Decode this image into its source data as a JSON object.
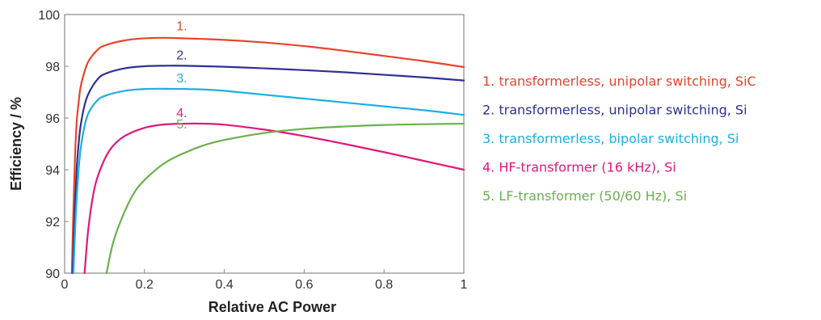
{
  "chart_data": {
    "type": "line",
    "xlabel": "Relative AC Power",
    "ylabel": "Efficiency / %",
    "xlim": [
      0,
      1
    ],
    "ylim": [
      90,
      100
    ],
    "xticks": [
      "0",
      "0.2",
      "0.4",
      "0.6",
      "0.8",
      "1"
    ],
    "yticks": [
      "90",
      "92",
      "94",
      "96",
      "98",
      "100"
    ],
    "grid": false,
    "legend_position": "right",
    "series": [
      {
        "name": "1. transformerless, unipolar switching, SiC",
        "marker": "1.",
        "color": "#e8442a",
        "x": [
          0.018,
          0.022,
          0.026,
          0.03,
          0.035,
          0.04,
          0.05,
          0.06,
          0.08,
          0.1,
          0.15,
          0.2,
          0.25,
          0.3,
          0.4,
          0.5,
          0.6,
          0.7,
          0.8,
          0.9,
          1.0
        ],
        "y": [
          90,
          92.5,
          94.5,
          95.8,
          96.6,
          97.2,
          97.8,
          98.2,
          98.6,
          98.8,
          99.0,
          99.08,
          99.1,
          99.08,
          99.02,
          98.92,
          98.78,
          98.6,
          98.4,
          98.2,
          97.97
        ]
      },
      {
        "name": "2. transformerless, unipolar switching, Si",
        "marker": "2.",
        "color": "#2e3192",
        "x": [
          0.02,
          0.025,
          0.03,
          0.035,
          0.04,
          0.05,
          0.06,
          0.08,
          0.1,
          0.15,
          0.2,
          0.25,
          0.3,
          0.4,
          0.5,
          0.6,
          0.7,
          0.8,
          0.9,
          1.0
        ],
        "y": [
          90,
          92.3,
          94.0,
          95.0,
          95.7,
          96.5,
          96.95,
          97.45,
          97.7,
          97.92,
          98.0,
          98.02,
          98.02,
          97.98,
          97.92,
          97.85,
          97.77,
          97.67,
          97.57,
          97.45
        ]
      },
      {
        "name": "3. transformerless, bipolar switching, Si",
        "marker": "3.",
        "color": "#1ab0e0",
        "x": [
          0.022,
          0.028,
          0.034,
          0.04,
          0.05,
          0.06,
          0.08,
          0.1,
          0.15,
          0.2,
          0.25,
          0.3,
          0.35,
          0.4,
          0.5,
          0.6,
          0.7,
          0.8,
          0.9,
          1.0
        ],
        "y": [
          90,
          92.3,
          93.8,
          94.8,
          95.7,
          96.2,
          96.65,
          96.85,
          97.05,
          97.12,
          97.13,
          97.12,
          97.1,
          97.05,
          96.9,
          96.75,
          96.6,
          96.45,
          96.3,
          96.12
        ]
      },
      {
        "name": "4. HF-transformer (16 kHz), Si",
        "marker": "4.",
        "color": "#e0187a",
        "x": [
          0.05,
          0.055,
          0.06,
          0.07,
          0.08,
          0.1,
          0.12,
          0.15,
          0.2,
          0.25,
          0.3,
          0.35,
          0.4,
          0.5,
          0.6,
          0.7,
          0.8,
          0.9,
          1.0
        ],
        "y": [
          90,
          91.0,
          91.8,
          92.9,
          93.6,
          94.4,
          94.9,
          95.3,
          95.62,
          95.75,
          95.78,
          95.78,
          95.74,
          95.55,
          95.3,
          95.0,
          94.68,
          94.34,
          94.0
        ]
      },
      {
        "name": "5. LF-transformer (50/60 Hz), Si",
        "marker": "5.",
        "color": "#6ab04c",
        "x": [
          0.105,
          0.12,
          0.14,
          0.17,
          0.2,
          0.25,
          0.3,
          0.35,
          0.4,
          0.5,
          0.6,
          0.7,
          0.8,
          0.9,
          1.0
        ],
        "y": [
          90,
          91.1,
          92.0,
          93.0,
          93.6,
          94.25,
          94.65,
          94.95,
          95.15,
          95.42,
          95.58,
          95.67,
          95.73,
          95.76,
          95.78
        ]
      }
    ]
  }
}
